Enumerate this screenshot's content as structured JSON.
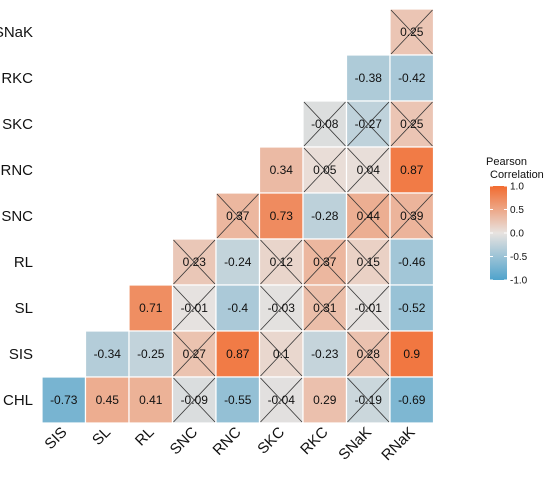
{
  "chart_data": {
    "type": "heatmap",
    "title": "",
    "xlabel": "",
    "ylabel": "",
    "rows": [
      "SNaK",
      "RKC",
      "SKC",
      "RNC",
      "SNC",
      "RL",
      "SL",
      "SIS",
      "CHL"
    ],
    "columns": [
      "SIS",
      "SL",
      "RL",
      "SNC",
      "RNC",
      "SKC",
      "RKC",
      "SNaK",
      "RNaK"
    ],
    "cells": [
      {
        "row": "SNaK",
        "col": "RNaK",
        "value": 0.25,
        "crossed": true
      },
      {
        "row": "RKC",
        "col": "SNaK",
        "value": -0.38,
        "crossed": false
      },
      {
        "row": "RKC",
        "col": "RNaK",
        "value": -0.42,
        "crossed": false
      },
      {
        "row": "SKC",
        "col": "RKC",
        "value": -0.08,
        "crossed": true
      },
      {
        "row": "SKC",
        "col": "SNaK",
        "value": -0.27,
        "crossed": true
      },
      {
        "row": "SKC",
        "col": "RNaK",
        "value": 0.25,
        "crossed": true
      },
      {
        "row": "RNC",
        "col": "SKC",
        "value": 0.34,
        "crossed": false
      },
      {
        "row": "RNC",
        "col": "RKC",
        "value": 0.05,
        "crossed": true
      },
      {
        "row": "RNC",
        "col": "SNaK",
        "value": 0.04,
        "crossed": true
      },
      {
        "row": "RNC",
        "col": "RNaK",
        "value": 0.87,
        "crossed": false
      },
      {
        "row": "SNC",
        "col": "RNC",
        "value": 0.37,
        "crossed": true
      },
      {
        "row": "SNC",
        "col": "SKC",
        "value": 0.73,
        "crossed": false
      },
      {
        "row": "SNC",
        "col": "RKC",
        "value": -0.28,
        "crossed": false
      },
      {
        "row": "SNC",
        "col": "SNaK",
        "value": 0.44,
        "crossed": true
      },
      {
        "row": "SNC",
        "col": "RNaK",
        "value": 0.39,
        "crossed": true
      },
      {
        "row": "RL",
        "col": "SNC",
        "value": 0.23,
        "crossed": true
      },
      {
        "row": "RL",
        "col": "RNC",
        "value": -0.24,
        "crossed": false
      },
      {
        "row": "RL",
        "col": "SKC",
        "value": 0.12,
        "crossed": true
      },
      {
        "row": "RL",
        "col": "RKC",
        "value": 0.37,
        "crossed": true
      },
      {
        "row": "RL",
        "col": "SNaK",
        "value": 0.15,
        "crossed": true
      },
      {
        "row": "RL",
        "col": "RNaK",
        "value": -0.46,
        "crossed": false
      },
      {
        "row": "SL",
        "col": "RL",
        "value": 0.71,
        "crossed": false
      },
      {
        "row": "SL",
        "col": "SNC",
        "value": -0.01,
        "crossed": true
      },
      {
        "row": "SL",
        "col": "RNC",
        "value": -0.4,
        "crossed": false
      },
      {
        "row": "SL",
        "col": "SKC",
        "value": -0.03,
        "crossed": true
      },
      {
        "row": "SL",
        "col": "RKC",
        "value": 0.31,
        "crossed": true
      },
      {
        "row": "SL",
        "col": "SNaK",
        "value": -0.01,
        "crossed": true
      },
      {
        "row": "SL",
        "col": "RNaK",
        "value": -0.52,
        "crossed": false
      },
      {
        "row": "SIS",
        "col": "SL",
        "value": -0.34,
        "crossed": false
      },
      {
        "row": "SIS",
        "col": "RL",
        "value": -0.25,
        "crossed": false
      },
      {
        "row": "SIS",
        "col": "SNC",
        "value": 0.27,
        "crossed": true
      },
      {
        "row": "SIS",
        "col": "RNC",
        "value": 0.87,
        "crossed": false
      },
      {
        "row": "SIS",
        "col": "SKC",
        "value": 0.1,
        "crossed": true
      },
      {
        "row": "SIS",
        "col": "RKC",
        "value": -0.23,
        "crossed": false
      },
      {
        "row": "SIS",
        "col": "SNaK",
        "value": 0.28,
        "crossed": true
      },
      {
        "row": "SIS",
        "col": "RNaK",
        "value": 0.9,
        "crossed": false
      },
      {
        "row": "CHL",
        "col": "SIS",
        "value": -0.73,
        "crossed": false
      },
      {
        "row": "CHL",
        "col": "SL",
        "value": 0.45,
        "crossed": false
      },
      {
        "row": "CHL",
        "col": "RL",
        "value": 0.41,
        "crossed": false
      },
      {
        "row": "CHL",
        "col": "SNC",
        "value": -0.09,
        "crossed": true
      },
      {
        "row": "CHL",
        "col": "RNC",
        "value": -0.55,
        "crossed": false
      },
      {
        "row": "CHL",
        "col": "SKC",
        "value": -0.04,
        "crossed": true
      },
      {
        "row": "CHL",
        "col": "RKC",
        "value": 0.29,
        "crossed": false
      },
      {
        "row": "CHL",
        "col": "SNaK",
        "value": -0.19,
        "crossed": true
      },
      {
        "row": "CHL",
        "col": "RNaK",
        "value": -0.69,
        "crossed": false
      }
    ],
    "legend": {
      "title": "Pearson\nCorrelation",
      "ticks": [
        "1.0",
        "0.5",
        "0.0",
        "-0.5",
        "-1.0"
      ],
      "range": [
        -1,
        1
      ],
      "placement": "right"
    },
    "colors": {
      "negative": "#4fa3cc",
      "neutral": "#e8e3e0",
      "positive": "#f26b2f",
      "cross": "#333333",
      "cell_border": "#ffffff"
    }
  }
}
